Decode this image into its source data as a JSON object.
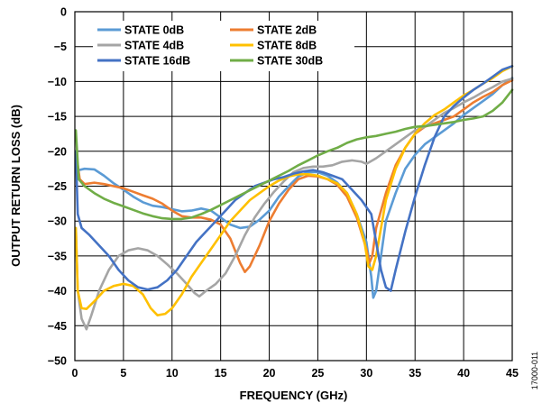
{
  "figure_id": "17000-011",
  "chart_data": {
    "type": "line",
    "title": "",
    "xlabel": "FREQUENCY (GHz)",
    "ylabel": "OUTPUT RETURN LOSS (dB)",
    "xlim": [
      0,
      45
    ],
    "ylim": [
      -50,
      0
    ],
    "xticks": [
      0,
      5,
      10,
      15,
      20,
      25,
      30,
      35,
      40,
      45
    ],
    "yticks": [
      0,
      -5,
      -10,
      -15,
      -20,
      -25,
      -30,
      -35,
      -40,
      -45,
      -50
    ],
    "grid": true,
    "legend_position": "top",
    "series": [
      {
        "name": "STATE 0dB",
        "color": "#5b9bd5",
        "points": [
          [
            0.1,
            -22.8
          ],
          [
            1,
            -22.5
          ],
          [
            2,
            -22.6
          ],
          [
            3,
            -23.5
          ],
          [
            4,
            -24.6
          ],
          [
            5,
            -25.5
          ],
          [
            6,
            -26.5
          ],
          [
            7,
            -27.3
          ],
          [
            8,
            -27.8
          ],
          [
            9,
            -28
          ],
          [
            10,
            -28.3
          ],
          [
            11,
            -28.6
          ],
          [
            12,
            -28.5
          ],
          [
            13,
            -28.2
          ],
          [
            14,
            -28.5
          ],
          [
            15,
            -29.5
          ],
          [
            16,
            -30.5
          ],
          [
            17,
            -31
          ],
          [
            18,
            -30.8
          ],
          [
            19,
            -29.8
          ],
          [
            20,
            -28.5
          ],
          [
            21,
            -26.5
          ],
          [
            22,
            -25
          ],
          [
            23,
            -23.6
          ],
          [
            24,
            -23
          ],
          [
            25,
            -23
          ],
          [
            26,
            -23.5
          ],
          [
            27,
            -24.5
          ],
          [
            28,
            -26
          ],
          [
            29,
            -29
          ],
          [
            30,
            -33
          ],
          [
            30.5,
            -38
          ],
          [
            30.7,
            -41
          ],
          [
            31,
            -40
          ],
          [
            31.5,
            -35
          ],
          [
            32,
            -30
          ],
          [
            33,
            -26
          ],
          [
            34,
            -22.5
          ],
          [
            35,
            -20.5
          ],
          [
            36,
            -19
          ],
          [
            37,
            -18
          ],
          [
            38,
            -17
          ],
          [
            39,
            -16
          ],
          [
            40,
            -14.8
          ],
          [
            41,
            -13.8
          ],
          [
            42,
            -12.8
          ],
          [
            43,
            -11.8
          ],
          [
            44,
            -10.5
          ],
          [
            45,
            -9.5
          ]
        ]
      },
      {
        "name": "STATE 2dB",
        "color": "#ed7d31",
        "points": [
          [
            0.1,
            -20
          ],
          [
            0.5,
            -24
          ],
          [
            1,
            -24.7
          ],
          [
            2,
            -24.5
          ],
          [
            3,
            -24.7
          ],
          [
            4,
            -25
          ],
          [
            5,
            -25.3
          ],
          [
            6,
            -25.8
          ],
          [
            7,
            -26.3
          ],
          [
            8,
            -26.8
          ],
          [
            9,
            -27.5
          ],
          [
            10,
            -28.5
          ],
          [
            11,
            -29.3
          ],
          [
            12,
            -29.5
          ],
          [
            13,
            -29.5
          ],
          [
            14,
            -29.8
          ],
          [
            15,
            -30.5
          ],
          [
            16,
            -32.5
          ],
          [
            17,
            -36
          ],
          [
            17.5,
            -37.3
          ],
          [
            18,
            -36.5
          ],
          [
            19,
            -33.5
          ],
          [
            20,
            -30
          ],
          [
            21,
            -27.5
          ],
          [
            22,
            -25.5
          ],
          [
            23,
            -24
          ],
          [
            24,
            -23.5
          ],
          [
            25,
            -23.6
          ],
          [
            26,
            -24
          ],
          [
            27,
            -24.8
          ],
          [
            28,
            -26.5
          ],
          [
            29,
            -29.5
          ],
          [
            30,
            -34
          ],
          [
            30.3,
            -36
          ],
          [
            30.6,
            -35
          ],
          [
            31,
            -31
          ],
          [
            32,
            -26
          ],
          [
            33,
            -22
          ],
          [
            34,
            -19.5
          ],
          [
            35,
            -17.5
          ],
          [
            36,
            -16.5
          ],
          [
            37,
            -16
          ],
          [
            38,
            -15.5
          ],
          [
            39,
            -15
          ],
          [
            40,
            -14
          ],
          [
            41,
            -13
          ],
          [
            42,
            -12.2
          ],
          [
            43,
            -11.5
          ],
          [
            44,
            -10.5
          ],
          [
            45,
            -9.8
          ]
        ]
      },
      {
        "name": "STATE 4dB",
        "color": "#a5a5a5",
        "points": [
          [
            0.1,
            -31
          ],
          [
            0.3,
            -40
          ],
          [
            0.7,
            -44
          ],
          [
            1.2,
            -45.5
          ],
          [
            1.7,
            -43.5
          ],
          [
            2.5,
            -40
          ],
          [
            3.5,
            -37
          ],
          [
            4.5,
            -35
          ],
          [
            5.5,
            -34.2
          ],
          [
            6.5,
            -33.9
          ],
          [
            7.5,
            -34.2
          ],
          [
            8.5,
            -35
          ],
          [
            9.5,
            -36.2
          ],
          [
            10.5,
            -37.5
          ],
          [
            11.5,
            -39
          ],
          [
            12.3,
            -40.3
          ],
          [
            12.8,
            -40.8
          ],
          [
            13.5,
            -40
          ],
          [
            14.5,
            -39
          ],
          [
            15.5,
            -37.5
          ],
          [
            16.5,
            -35
          ],
          [
            17.5,
            -32
          ],
          [
            18.5,
            -29.5
          ],
          [
            19.5,
            -27.5
          ],
          [
            20.5,
            -25.8
          ],
          [
            21.5,
            -24.3
          ],
          [
            22.5,
            -23
          ],
          [
            23.5,
            -22.4
          ],
          [
            24.5,
            -22.2
          ],
          [
            25.5,
            -22.2
          ],
          [
            26.5,
            -22
          ],
          [
            27.5,
            -21.5
          ],
          [
            28.5,
            -21.3
          ],
          [
            29.5,
            -21.5
          ],
          [
            30,
            -21.8
          ],
          [
            31,
            -21
          ],
          [
            32,
            -20
          ],
          [
            33,
            -19
          ],
          [
            34,
            -18
          ],
          [
            35,
            -17
          ],
          [
            36,
            -16.5
          ],
          [
            37,
            -15.5
          ],
          [
            38,
            -14.5
          ],
          [
            39,
            -13.8
          ],
          [
            40,
            -13
          ],
          [
            41,
            -12.3
          ],
          [
            42,
            -11.5
          ],
          [
            43,
            -10.8
          ],
          [
            44,
            -10
          ],
          [
            45,
            -9.6
          ]
        ]
      },
      {
        "name": "STATE 8dB",
        "color": "#ffc000",
        "points": [
          [
            0.1,
            -31
          ],
          [
            0.3,
            -40
          ],
          [
            0.7,
            -42.5
          ],
          [
            1.2,
            -42.6
          ],
          [
            2,
            -41.5
          ],
          [
            3,
            -40
          ],
          [
            4,
            -39.3
          ],
          [
            5,
            -39
          ],
          [
            6,
            -39.3
          ],
          [
            7,
            -40.5
          ],
          [
            7.8,
            -42.5
          ],
          [
            8.5,
            -43.5
          ],
          [
            9.3,
            -43.3
          ],
          [
            10,
            -42.5
          ],
          [
            11,
            -40.5
          ],
          [
            12,
            -38
          ],
          [
            13,
            -36
          ],
          [
            14,
            -34
          ],
          [
            15,
            -32
          ],
          [
            16,
            -30
          ],
          [
            17,
            -28.5
          ],
          [
            18,
            -27
          ],
          [
            19,
            -26
          ],
          [
            20,
            -25
          ],
          [
            21,
            -24.2
          ],
          [
            22,
            -23.6
          ],
          [
            23,
            -23.3
          ],
          [
            24,
            -23.3
          ],
          [
            25,
            -23.5
          ],
          [
            26,
            -24
          ],
          [
            27,
            -24.6
          ],
          [
            28,
            -26
          ],
          [
            29,
            -29
          ],
          [
            29.8,
            -33
          ],
          [
            30.2,
            -36.5
          ],
          [
            30.6,
            -37
          ],
          [
            31,
            -35
          ],
          [
            31.5,
            -31
          ],
          [
            32,
            -27
          ],
          [
            33,
            -22.5
          ],
          [
            34,
            -19.5
          ],
          [
            35,
            -17.5
          ],
          [
            36,
            -16
          ],
          [
            37,
            -14.8
          ],
          [
            38,
            -14
          ],
          [
            39,
            -13
          ],
          [
            40,
            -12
          ],
          [
            41,
            -11.2
          ],
          [
            42,
            -10.3
          ],
          [
            43,
            -9.5
          ],
          [
            44,
            -8.5
          ],
          [
            45,
            -7.8
          ]
        ]
      },
      {
        "name": "STATE 16dB",
        "color": "#4472c4",
        "points": [
          [
            0.1,
            -20
          ],
          [
            0.3,
            -29
          ],
          [
            0.7,
            -31
          ],
          [
            1.5,
            -32
          ],
          [
            2.5,
            -33.5
          ],
          [
            3.5,
            -35
          ],
          [
            4.5,
            -37
          ],
          [
            5.5,
            -38.5
          ],
          [
            6.5,
            -39.5
          ],
          [
            7.5,
            -39.8
          ],
          [
            8.5,
            -39.5
          ],
          [
            9.5,
            -38.5
          ],
          [
            10.5,
            -37
          ],
          [
            11.5,
            -35
          ],
          [
            12.5,
            -33
          ],
          [
            13.5,
            -31.5
          ],
          [
            14.5,
            -30
          ],
          [
            15.5,
            -28.5
          ],
          [
            16.5,
            -27
          ],
          [
            17.5,
            -26
          ],
          [
            18.5,
            -25
          ],
          [
            19.5,
            -24.5
          ],
          [
            20.5,
            -24
          ],
          [
            21.5,
            -23.7
          ],
          [
            22.5,
            -23.2
          ],
          [
            23.5,
            -22.9
          ],
          [
            24.5,
            -22.7
          ],
          [
            25.5,
            -23
          ],
          [
            26.5,
            -23.5
          ],
          [
            27.5,
            -24
          ],
          [
            28.5,
            -25.5
          ],
          [
            29.5,
            -27
          ],
          [
            30.5,
            -29
          ],
          [
            31,
            -33
          ],
          [
            31.5,
            -37
          ],
          [
            32,
            -39.5
          ],
          [
            32.5,
            -40
          ],
          [
            33,
            -37
          ],
          [
            34,
            -31.5
          ],
          [
            35,
            -26.5
          ],
          [
            36,
            -22
          ],
          [
            37,
            -18
          ],
          [
            38,
            -15
          ],
          [
            39,
            -13.5
          ],
          [
            40,
            -12.3
          ],
          [
            41,
            -11.2
          ],
          [
            42,
            -10.3
          ],
          [
            43,
            -9.3
          ],
          [
            44,
            -8.3
          ],
          [
            45,
            -7.8
          ]
        ]
      },
      {
        "name": "STATE 30dB",
        "color": "#70ad47",
        "points": [
          [
            0.1,
            -17
          ],
          [
            0.4,
            -24
          ],
          [
            1,
            -25
          ],
          [
            2,
            -26
          ],
          [
            3,
            -26.8
          ],
          [
            4,
            -27.4
          ],
          [
            5,
            -27.9
          ],
          [
            6,
            -28.4
          ],
          [
            7,
            -28.9
          ],
          [
            8,
            -29.3
          ],
          [
            9,
            -29.6
          ],
          [
            10,
            -29.7
          ],
          [
            11,
            -29.7
          ],
          [
            12,
            -29.5
          ],
          [
            13,
            -29
          ],
          [
            14,
            -28.4
          ],
          [
            15,
            -27.7
          ],
          [
            16,
            -27
          ],
          [
            17,
            -26.3
          ],
          [
            18,
            -25.6
          ],
          [
            19,
            -24.9
          ],
          [
            20,
            -24.2
          ],
          [
            21,
            -23.5
          ],
          [
            22,
            -22.8
          ],
          [
            23,
            -22
          ],
          [
            24,
            -21.3
          ],
          [
            25,
            -20.6
          ],
          [
            26,
            -20
          ],
          [
            27,
            -19.5
          ],
          [
            28,
            -18.8
          ],
          [
            29,
            -18.3
          ],
          [
            30,
            -18
          ],
          [
            31,
            -17.8
          ],
          [
            32,
            -17.5
          ],
          [
            33,
            -17.2
          ],
          [
            34,
            -16.8
          ],
          [
            35,
            -16.5
          ],
          [
            36,
            -16.4
          ],
          [
            37,
            -16.2
          ],
          [
            38,
            -16
          ],
          [
            39,
            -15.8
          ],
          [
            40,
            -15.5
          ],
          [
            41,
            -15.3
          ],
          [
            42,
            -15
          ],
          [
            43,
            -14.2
          ],
          [
            44,
            -13
          ],
          [
            45,
            -11.2
          ]
        ]
      }
    ]
  }
}
